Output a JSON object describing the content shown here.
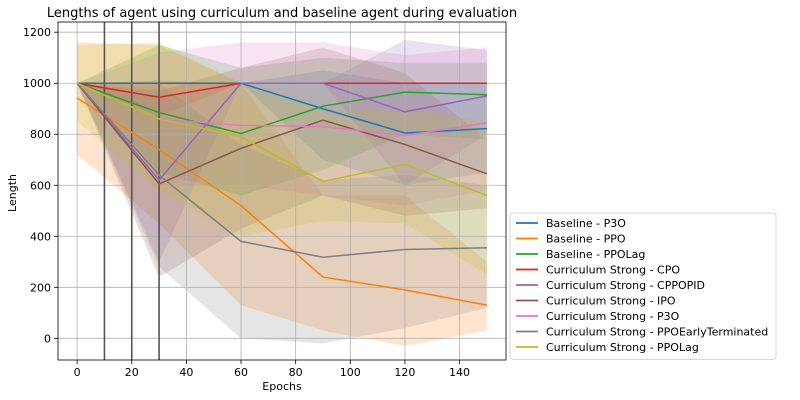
{
  "chart_data": {
    "type": "line",
    "title": "Lengths of agent using curriculum and baseline agent during evaluation",
    "xlabel": "Epochs",
    "ylabel": "Length",
    "xlim": [
      -7,
      157
    ],
    "ylim": [
      -85,
      1240
    ],
    "xticks": [
      0,
      20,
      40,
      60,
      80,
      100,
      120,
      140
    ],
    "yticks": [
      0,
      200,
      400,
      600,
      800,
      1000,
      1200
    ],
    "grid": true,
    "legend_position": "lower-right outside",
    "vlines": [
      10,
      20,
      30
    ],
    "x": [
      0,
      30,
      60,
      90,
      120,
      150
    ],
    "series": [
      {
        "name": "Baseline - P3O",
        "color": "#1f77b4",
        "values": [
          1000,
          1000,
          1000,
          900,
          805,
          822
        ],
        "lower": [
          1000,
          1000,
          1000,
          700,
          600,
          650
        ],
        "upper": [
          1000,
          1000,
          1000,
          1050,
          1000,
          1000
        ]
      },
      {
        "name": "Baseline - PPO",
        "color": "#ff7f0e",
        "values": [
          942,
          740,
          520,
          240,
          190,
          130
        ],
        "lower": [
          720,
          450,
          130,
          30,
          -30,
          30
        ],
        "upper": [
          1160,
          1150,
          1000,
          560,
          560,
          300
        ]
      },
      {
        "name": "Baseline - PPOLag",
        "color": "#2ca02c",
        "values": [
          1000,
          885,
          803,
          910,
          965,
          955
        ],
        "lower": [
          1000,
          650,
          560,
          660,
          800,
          780
        ],
        "upper": [
          1000,
          1150,
          1060,
          1100,
          1080,
          1080
        ]
      },
      {
        "name": "Curriculum Strong - CPO",
        "color": "#d62728",
        "values": [
          1000,
          945,
          1000,
          1000,
          1000,
          1000
        ],
        "lower": [
          1000,
          870,
          1000,
          1000,
          1000,
          1000
        ],
        "upper": [
          1000,
          1010,
          1000,
          1000,
          1000,
          1000
        ]
      },
      {
        "name": "Curriculum Strong - CPPOPID",
        "color": "#9467bd",
        "values": [
          1000,
          620,
          1000,
          1000,
          888,
          950
        ],
        "lower": [
          1000,
          300,
          1000,
          1000,
          600,
          800
        ],
        "upper": [
          1000,
          940,
          1000,
          1000,
          1170,
          1130
        ]
      },
      {
        "name": "Curriculum Strong - IPO",
        "color": "#8c564b",
        "values": [
          1000,
          605,
          745,
          855,
          760,
          645
        ],
        "lower": [
          1000,
          240,
          430,
          560,
          480,
          510
        ],
        "upper": [
          1000,
          970,
          1060,
          1140,
          1040,
          780
        ]
      },
      {
        "name": "Curriculum Strong - P3O",
        "color": "#e377c2",
        "values": [
          1000,
          860,
          835,
          830,
          795,
          845
        ],
        "lower": [
          1000,
          600,
          600,
          560,
          520,
          580
        ],
        "upper": [
          1000,
          1120,
          1160,
          1160,
          1110,
          1140
        ]
      },
      {
        "name": "Curriculum Strong - PPOEarlyTerminated",
        "color": "#7f7f7f",
        "values": [
          1000,
          640,
          380,
          318,
          348,
          355
        ],
        "lower": [
          1000,
          280,
          0,
          -20,
          40,
          120
        ],
        "upper": [
          1000,
          1000,
          760,
          620,
          640,
          600
        ]
      },
      {
        "name": "Curriculum Strong - PPOLag",
        "color": "#bcbd22",
        "values": [
          1000,
          860,
          790,
          615,
          682,
          560
        ],
        "lower": [
          850,
          580,
          400,
          460,
          450,
          250
        ],
        "upper": [
          1150,
          1160,
          1000,
          900,
          900,
          850
        ]
      }
    ]
  }
}
